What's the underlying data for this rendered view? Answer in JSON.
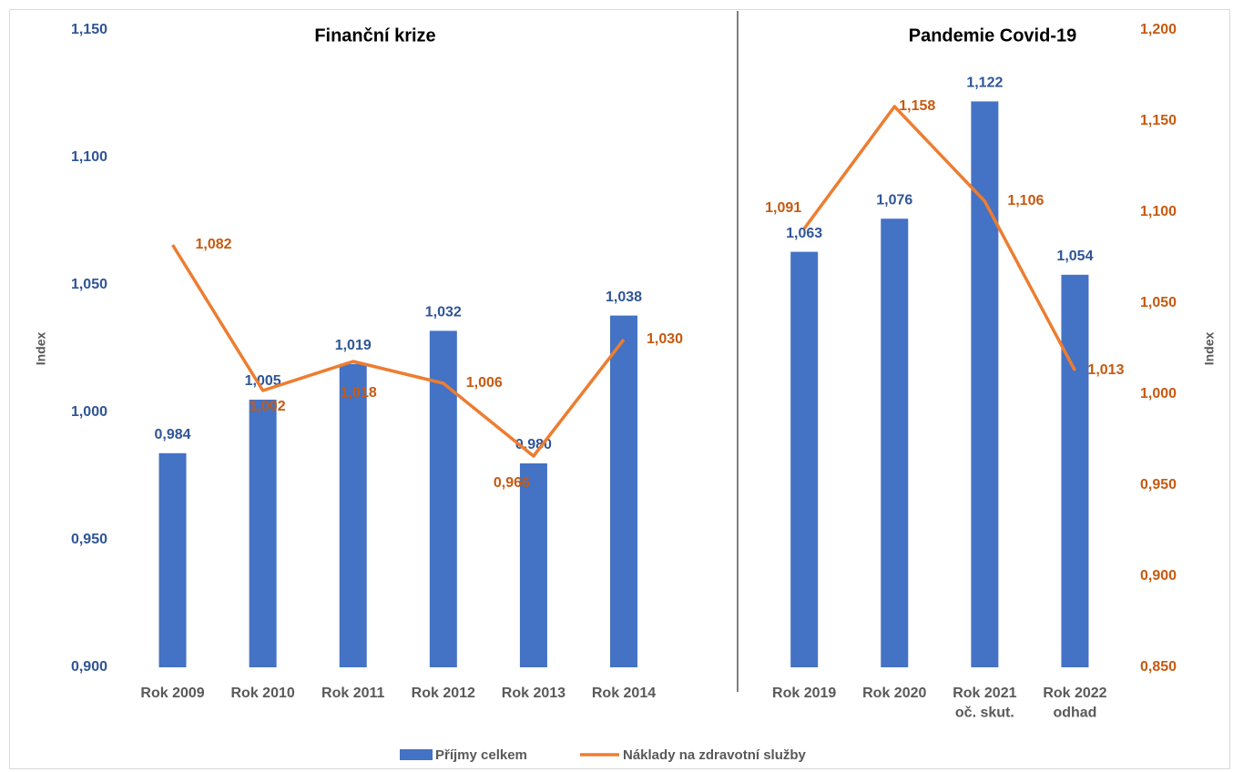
{
  "chart_data": {
    "type": "bar+line",
    "annotations": [
      "Finanční krize",
      "Pandemie Covid-19"
    ],
    "ylabel": "Index",
    "y2label": "Index",
    "categories": [
      "Rok 2009",
      "Rok 2010",
      "Rok 2011",
      "Rok 2012",
      "Rok 2013",
      "Rok 2014",
      null,
      "Rok 2019",
      "Rok 2020",
      "Rok 2021\noč. skut.",
      "Rok 2022\nodhad"
    ],
    "series": [
      {
        "name": "Příjmy celkem",
        "type": "bar",
        "color": "#4472c4",
        "values": [
          0.984,
          1.005,
          1.019,
          1.032,
          0.98,
          1.038,
          null,
          1.063,
          1.076,
          1.122,
          1.054
        ],
        "value_labels": [
          "0,984",
          "1,005",
          "1,019",
          "1,032",
          "0,980",
          "1,038",
          null,
          "1,063",
          "1,076",
          "1,122",
          "1,054"
        ]
      },
      {
        "name": "Náklady na zdravotní služby",
        "type": "line",
        "axis": "y2",
        "color": "#ed7d31",
        "values": [
          1.082,
          1.002,
          1.018,
          1.006,
          0.966,
          1.03,
          null,
          1.091,
          1.158,
          1.106,
          1.013
        ],
        "value_labels": [
          "1,082",
          "1,002",
          "1,018",
          "1,006",
          "0,966",
          "1,030",
          null,
          "1,091",
          "1,158",
          "1,106",
          "1,013"
        ]
      }
    ],
    "ylim": [
      0.9,
      1.15
    ],
    "yticks": [
      {
        "value": 0.9,
        "label": "0,900"
      },
      {
        "value": 0.95,
        "label": "0,950"
      },
      {
        "value": 1.0,
        "label": "1,000"
      },
      {
        "value": 1.05,
        "label": "1,050"
      },
      {
        "value": 1.1,
        "label": "1,100"
      },
      {
        "value": 1.15,
        "label": "1,150"
      }
    ],
    "y2lim": [
      0.85,
      1.2
    ],
    "y2ticks": [
      {
        "value": 0.85,
        "label": "0,850"
      },
      {
        "value": 0.9,
        "label": "0,900"
      },
      {
        "value": 0.95,
        "label": "0,950"
      },
      {
        "value": 1.0,
        "label": "1,000"
      },
      {
        "value": 1.05,
        "label": "1,050"
      },
      {
        "value": 1.1,
        "label": "1,100"
      },
      {
        "value": 1.15,
        "label": "1,150"
      },
      {
        "value": 1.2,
        "label": "1,200"
      }
    ],
    "grid": false,
    "legend": "bottom"
  }
}
